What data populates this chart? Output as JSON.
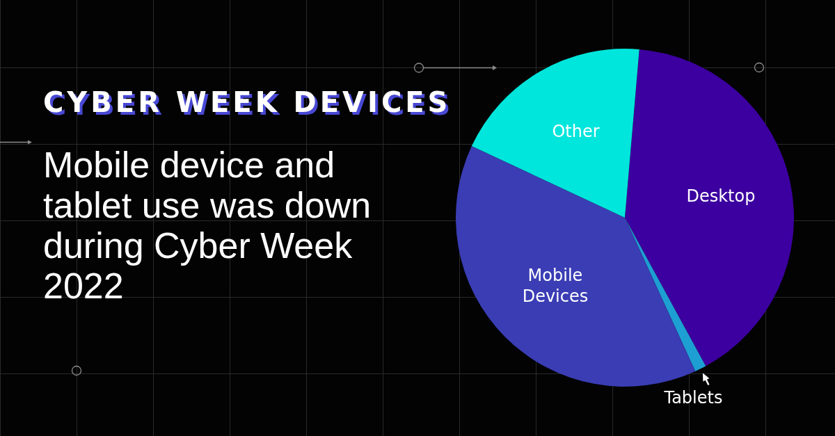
{
  "chart_data": {
    "type": "pie",
    "title": "CYBER WEEK DEVICES",
    "subtitle": "Mobile device and tablet use was down during Cyber Week 2022",
    "categories": [
      "Desktop",
      "Tablets",
      "Mobile Devices",
      "Other"
    ],
    "values": [
      40.7,
      1.1,
      38.8,
      19.4
    ],
    "colors": [
      "#3c00a0",
      "#1e9fd3",
      "#3a3db4",
      "#00e6dc"
    ],
    "legend": false
  }
}
